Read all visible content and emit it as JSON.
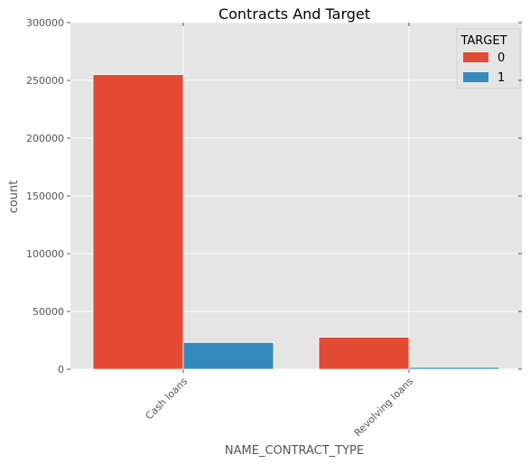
{
  "chart_data": {
    "type": "bar",
    "title": "Contracts And Target",
    "xlabel": "NAME_CONTRACT_TYPE",
    "ylabel": "count",
    "categories": [
      "Cash loans",
      "Revolving loans"
    ],
    "series": [
      {
        "name": "0",
        "values": [
          255000,
          27700
        ],
        "color": "#e24a33"
      },
      {
        "name": "1",
        "values": [
          23200,
          1600
        ],
        "color": "#348abd"
      }
    ],
    "ylim": [
      0,
      300000
    ],
    "yticks": [
      0,
      50000,
      100000,
      150000,
      200000,
      250000,
      300000
    ],
    "ytick_labels": [
      "0",
      "50000",
      "100000",
      "150000",
      "200000",
      "250000",
      "300000"
    ],
    "legend": {
      "title": "TARGET",
      "placement": "top-right"
    },
    "grid": true,
    "background_color": "#e5e5e5",
    "grid_color": "#ffffff"
  }
}
